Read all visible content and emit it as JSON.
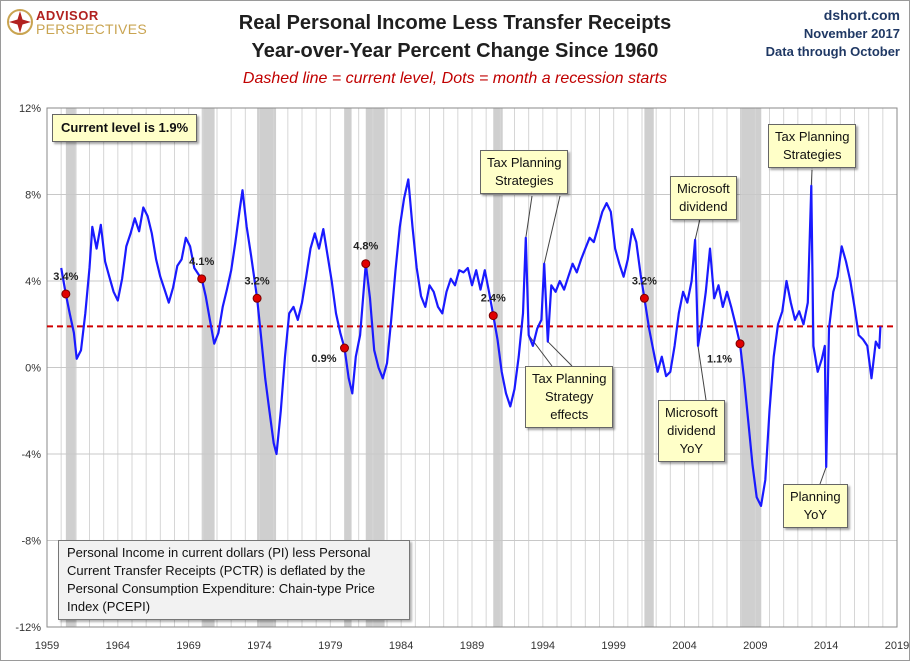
{
  "branding": {
    "logo_top": "ADVISOR",
    "logo_bottom": "PERSPECTIVES",
    "logo_icon": "compass-star-icon",
    "source_site": "dshort.com",
    "source_date": "November 2017",
    "data_through": "Data through October"
  },
  "colors": {
    "series_line": "#1a1aff",
    "current_level_line": "#d00000",
    "recession_band": "#cfcfcf",
    "recession_dot": "#e00000",
    "callout_fill": "#ffffc8",
    "note_fill": "#f2f2f2"
  },
  "annotations": {
    "current_level": "Current level is 1.9%",
    "tax_planning_1": [
      "Tax Planning",
      "Strategies"
    ],
    "tax_planning_effects": [
      "Tax Planning",
      "Strategy",
      "effects"
    ],
    "microsoft_dividend": [
      "Microsoft",
      "dividend"
    ],
    "microsoft_dividend_yoy": [
      "Microsoft",
      "dividend",
      "YoY"
    ],
    "tax_planning_2": [
      "Tax Planning",
      "Strategies"
    ],
    "planning_yoy": [
      "Planning",
      "YoY"
    ],
    "note": "Personal Income in current dollars  (PI) less Personal Current Transfer Receipts (PCTR) is deflated by the Personal Consumption Expenditure: Chain-type Price Index (PCEPI)"
  },
  "chart_data": {
    "type": "line",
    "title": "Real Personal Income Less Transfer Receipts",
    "subtitle": "Year-over-Year Percent Change Since 1960",
    "caption": "Dashed line = current level, Dots = month a recession starts",
    "xlim": [
      1959,
      2019
    ],
    "ylim": [
      -12,
      12
    ],
    "x_ticks": [
      1959,
      1964,
      1969,
      1974,
      1979,
      1984,
      1989,
      1994,
      1999,
      2004,
      2009,
      2014,
      2019
    ],
    "y_ticks": [
      -12,
      -8,
      -4,
      0,
      4,
      8,
      12
    ],
    "y_tick_labels": [
      "-12%",
      "-8%",
      "-4%",
      "0%",
      "4%",
      "8%",
      "12%"
    ],
    "grid": true,
    "current_level": 1.9,
    "recessions": [
      [
        1960.33,
        1961.08
      ],
      [
        1969.92,
        1970.83
      ],
      [
        1973.83,
        1975.17
      ],
      [
        1980.0,
        1980.5
      ],
      [
        1981.5,
        1982.83
      ],
      [
        1990.5,
        1991.17
      ],
      [
        2001.17,
        2001.83
      ],
      [
        2007.92,
        2009.42
      ]
    ],
    "recession_starts": [
      {
        "x": 1960.33,
        "y": 3.4,
        "label": "3.4%"
      },
      {
        "x": 1969.92,
        "y": 4.1,
        "label": "4.1%"
      },
      {
        "x": 1973.83,
        "y": 3.2,
        "label": "3.2%"
      },
      {
        "x": 1980.0,
        "y": 0.9,
        "label": "0.9%"
      },
      {
        "x": 1981.5,
        "y": 4.8,
        "label": "4.8%"
      },
      {
        "x": 1990.5,
        "y": 2.4,
        "label": "2.4%"
      },
      {
        "x": 2001.17,
        "y": 3.2,
        "label": "3.2%"
      },
      {
        "x": 2007.92,
        "y": 1.1,
        "label": "1.1%"
      }
    ],
    "series": [
      {
        "points": [
          [
            1960.0,
            4.6
          ],
          [
            1960.33,
            3.4
          ],
          [
            1960.6,
            2.5
          ],
          [
            1960.9,
            1.6
          ],
          [
            1961.1,
            0.4
          ],
          [
            1961.4,
            0.8
          ],
          [
            1961.7,
            2.5
          ],
          [
            1962.0,
            4.6
          ],
          [
            1962.2,
            6.5
          ],
          [
            1962.5,
            5.5
          ],
          [
            1962.8,
            6.6
          ],
          [
            1963.1,
            4.9
          ],
          [
            1963.4,
            4.2
          ],
          [
            1963.7,
            3.5
          ],
          [
            1964.0,
            3.1
          ],
          [
            1964.3,
            4.1
          ],
          [
            1964.6,
            5.6
          ],
          [
            1964.9,
            6.2
          ],
          [
            1965.2,
            6.9
          ],
          [
            1965.5,
            6.3
          ],
          [
            1965.8,
            7.4
          ],
          [
            1966.1,
            7.0
          ],
          [
            1966.4,
            6.2
          ],
          [
            1966.7,
            5.0
          ],
          [
            1967.0,
            4.2
          ],
          [
            1967.3,
            3.6
          ],
          [
            1967.6,
            3.0
          ],
          [
            1967.9,
            3.7
          ],
          [
            1968.2,
            4.7
          ],
          [
            1968.5,
            5.0
          ],
          [
            1968.8,
            6.0
          ],
          [
            1969.1,
            5.6
          ],
          [
            1969.4,
            4.6
          ],
          [
            1969.7,
            4.3
          ],
          [
            1969.92,
            4.1
          ],
          [
            1970.2,
            3.3
          ],
          [
            1970.5,
            2.2
          ],
          [
            1970.8,
            1.1
          ],
          [
            1971.1,
            1.6
          ],
          [
            1971.4,
            2.8
          ],
          [
            1971.7,
            3.6
          ],
          [
            1972.0,
            4.5
          ],
          [
            1972.3,
            5.8
          ],
          [
            1972.6,
            7.3
          ],
          [
            1972.8,
            8.2
          ],
          [
            1973.1,
            6.5
          ],
          [
            1973.4,
            5.2
          ],
          [
            1973.7,
            3.8
          ],
          [
            1973.83,
            3.2
          ],
          [
            1974.1,
            1.5
          ],
          [
            1974.4,
            -0.5
          ],
          [
            1974.7,
            -2.0
          ],
          [
            1975.0,
            -3.5
          ],
          [
            1975.2,
            -4.0
          ],
          [
            1975.5,
            -2.0
          ],
          [
            1975.8,
            0.5
          ],
          [
            1976.1,
            2.5
          ],
          [
            1976.4,
            2.8
          ],
          [
            1976.7,
            2.2
          ],
          [
            1977.0,
            3.0
          ],
          [
            1977.3,
            4.2
          ],
          [
            1977.6,
            5.5
          ],
          [
            1977.9,
            6.2
          ],
          [
            1978.2,
            5.5
          ],
          [
            1978.5,
            6.4
          ],
          [
            1978.8,
            5.2
          ],
          [
            1979.1,
            4.0
          ],
          [
            1979.4,
            2.5
          ],
          [
            1979.7,
            1.6
          ],
          [
            1980.0,
            0.9
          ],
          [
            1980.3,
            -0.5
          ],
          [
            1980.55,
            -1.2
          ],
          [
            1980.8,
            0.5
          ],
          [
            1981.1,
            1.5
          ],
          [
            1981.5,
            4.8
          ],
          [
            1981.8,
            3.2
          ],
          [
            1982.1,
            0.8
          ],
          [
            1982.4,
            0.0
          ],
          [
            1982.7,
            -0.5
          ],
          [
            1983.0,
            0.2
          ],
          [
            1983.3,
            2.2
          ],
          [
            1983.6,
            4.5
          ],
          [
            1983.9,
            6.5
          ],
          [
            1984.2,
            7.8
          ],
          [
            1984.5,
            8.7
          ],
          [
            1984.8,
            6.5
          ],
          [
            1985.1,
            4.6
          ],
          [
            1985.4,
            3.3
          ],
          [
            1985.7,
            2.8
          ],
          [
            1986.0,
            3.8
          ],
          [
            1986.3,
            3.5
          ],
          [
            1986.6,
            2.8
          ],
          [
            1986.9,
            2.5
          ],
          [
            1987.2,
            3.5
          ],
          [
            1987.5,
            4.1
          ],
          [
            1987.8,
            3.8
          ],
          [
            1988.1,
            4.5
          ],
          [
            1988.4,
            4.4
          ],
          [
            1988.7,
            4.6
          ],
          [
            1989.0,
            3.8
          ],
          [
            1989.3,
            4.5
          ],
          [
            1989.6,
            3.6
          ],
          [
            1989.9,
            4.5
          ],
          [
            1990.2,
            3.5
          ],
          [
            1990.5,
            2.4
          ],
          [
            1990.8,
            1.3
          ],
          [
            1991.1,
            -0.2
          ],
          [
            1991.4,
            -1.2
          ],
          [
            1991.7,
            -1.8
          ],
          [
            1992.0,
            -1.0
          ],
          [
            1992.3,
            0.5
          ],
          [
            1992.6,
            2.5
          ],
          [
            1992.8,
            6.0
          ],
          [
            1993.0,
            1.5
          ],
          [
            1993.3,
            1.0
          ],
          [
            1993.6,
            1.8
          ],
          [
            1993.9,
            2.2
          ],
          [
            1994.1,
            4.8
          ],
          [
            1994.35,
            1.2
          ],
          [
            1994.6,
            3.8
          ],
          [
            1994.9,
            3.5
          ],
          [
            1995.2,
            4.0
          ],
          [
            1995.5,
            3.6
          ],
          [
            1995.8,
            4.2
          ],
          [
            1996.1,
            4.8
          ],
          [
            1996.4,
            4.4
          ],
          [
            1996.7,
            5.0
          ],
          [
            1997.0,
            5.5
          ],
          [
            1997.3,
            6.0
          ],
          [
            1997.6,
            5.8
          ],
          [
            1997.9,
            6.5
          ],
          [
            1998.2,
            7.2
          ],
          [
            1998.5,
            7.6
          ],
          [
            1998.8,
            7.2
          ],
          [
            1999.1,
            5.5
          ],
          [
            1999.4,
            4.8
          ],
          [
            1999.7,
            4.2
          ],
          [
            2000.0,
            5.0
          ],
          [
            2000.3,
            6.4
          ],
          [
            2000.6,
            5.8
          ],
          [
            2000.9,
            4.3
          ],
          [
            2001.17,
            3.2
          ],
          [
            2001.5,
            1.8
          ],
          [
            2001.8,
            0.8
          ],
          [
            2002.1,
            -0.2
          ],
          [
            2002.4,
            0.5
          ],
          [
            2002.7,
            -0.4
          ],
          [
            2003.0,
            -0.2
          ],
          [
            2003.3,
            1.0
          ],
          [
            2003.6,
            2.5
          ],
          [
            2003.9,
            3.5
          ],
          [
            2004.2,
            3.0
          ],
          [
            2004.5,
            4.0
          ],
          [
            2004.75,
            5.9
          ],
          [
            2004.95,
            1.0
          ],
          [
            2005.2,
            2.0
          ],
          [
            2005.5,
            3.5
          ],
          [
            2005.8,
            5.5
          ],
          [
            2006.1,
            3.2
          ],
          [
            2006.4,
            3.8
          ],
          [
            2006.7,
            2.8
          ],
          [
            2007.0,
            3.5
          ],
          [
            2007.3,
            2.8
          ],
          [
            2007.6,
            2.0
          ],
          [
            2007.92,
            1.1
          ],
          [
            2008.2,
            -0.5
          ],
          [
            2008.5,
            -2.5
          ],
          [
            2008.8,
            -4.5
          ],
          [
            2009.1,
            -6.0
          ],
          [
            2009.4,
            -6.4
          ],
          [
            2009.7,
            -5.2
          ],
          [
            2010.0,
            -2.0
          ],
          [
            2010.3,
            0.5
          ],
          [
            2010.6,
            2.0
          ],
          [
            2010.9,
            2.6
          ],
          [
            2011.2,
            4.0
          ],
          [
            2011.5,
            3.0
          ],
          [
            2011.8,
            2.2
          ],
          [
            2012.1,
            2.6
          ],
          [
            2012.4,
            2.0
          ],
          [
            2012.7,
            3.0
          ],
          [
            2012.95,
            8.4
          ],
          [
            2013.1,
            1.0
          ],
          [
            2013.4,
            -0.2
          ],
          [
            2013.7,
            0.4
          ],
          [
            2013.9,
            1.0
          ],
          [
            2014.0,
            -4.6
          ],
          [
            2014.2,
            1.8
          ],
          [
            2014.5,
            3.5
          ],
          [
            2014.8,
            4.2
          ],
          [
            2015.1,
            5.6
          ],
          [
            2015.4,
            4.9
          ],
          [
            2015.7,
            4.0
          ],
          [
            2016.0,
            2.8
          ],
          [
            2016.3,
            1.5
          ],
          [
            2016.6,
            1.3
          ],
          [
            2016.9,
            1.0
          ],
          [
            2017.2,
            -0.5
          ],
          [
            2017.5,
            1.2
          ],
          [
            2017.75,
            0.9
          ],
          [
            2017.83,
            1.9
          ]
        ]
      }
    ]
  }
}
